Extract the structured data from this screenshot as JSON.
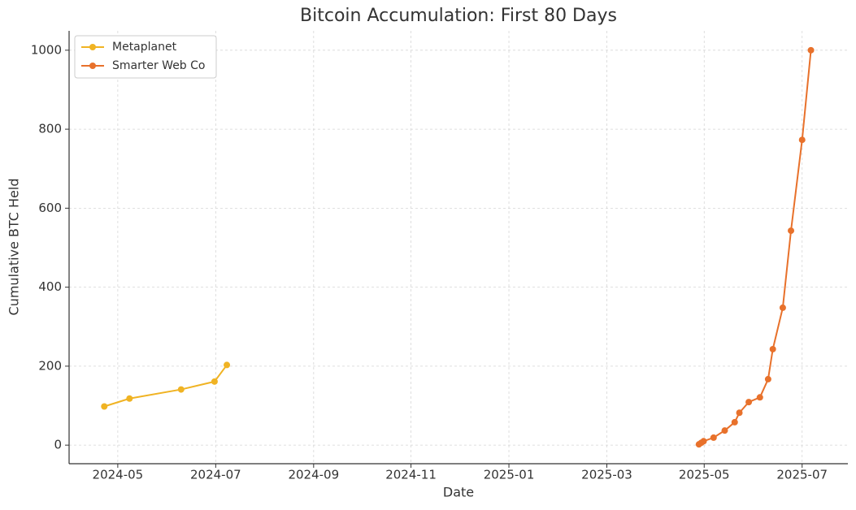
{
  "chart_data": {
    "type": "line",
    "title": "Bitcoin Accumulation: First 80 Days",
    "x_label": "Date",
    "y_label": "Cumulative BTC Held",
    "xlim": [
      2024.25,
      2025.578
    ],
    "xticks": [
      {
        "value": 2024.333,
        "label": "2024-05"
      },
      {
        "value": 2024.5,
        "label": "2024-07"
      },
      {
        "value": 2024.667,
        "label": "2024-09"
      },
      {
        "value": 2024.833,
        "label": "2024-11"
      },
      {
        "value": 2025.0,
        "label": "2025-01"
      },
      {
        "value": 2025.167,
        "label": "2025-03"
      },
      {
        "value": 2025.333,
        "label": "2025-05"
      },
      {
        "value": 2025.5,
        "label": "2025-07"
      }
    ],
    "ylim": [
      -47,
      1049
    ],
    "yticks": [
      0,
      200,
      400,
      600,
      800,
      1000
    ],
    "grid": true,
    "legend": "upper left",
    "series": [
      {
        "name": "Metaplanet",
        "color": "#f0b323",
        "x": [
          2024.31,
          2024.353,
          2024.441,
          2024.498,
          2024.519
        ],
        "values": [
          98,
          118,
          141,
          161,
          203
        ]
      },
      {
        "name": "Smarter Web Co",
        "color": "#e8712b",
        "x": [
          2025.324,
          2025.328,
          2025.332,
          2025.349,
          2025.368,
          2025.385,
          2025.393,
          2025.409,
          2025.428,
          2025.442,
          2025.45,
          2025.467,
          2025.481,
          2025.5,
          2025.515
        ],
        "values": [
          2,
          6,
          10,
          19,
          37,
          58,
          82,
          109,
          121,
          167,
          243,
          348,
          543,
          773,
          1000
        ]
      }
    ]
  }
}
